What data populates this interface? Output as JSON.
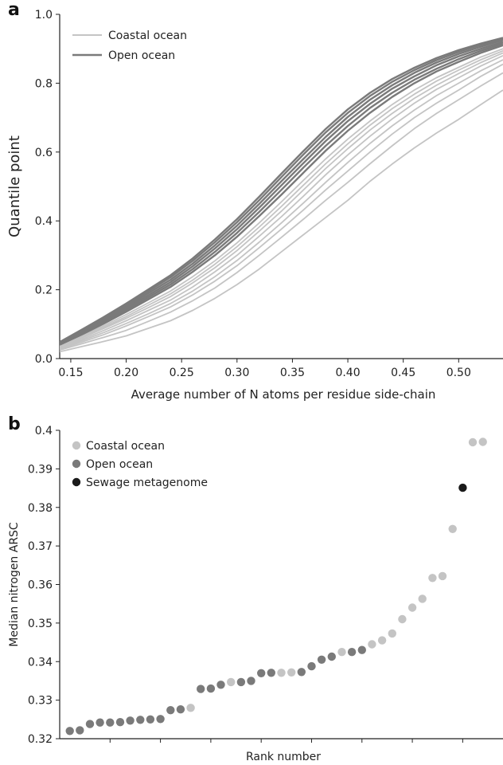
{
  "panels": {
    "a_letter": "a",
    "b_letter": "b"
  },
  "chart_data": [
    {
      "type": "line",
      "xlabel": "Average number of N atoms per residue side-chain",
      "ylabel": "Quantile point",
      "xlim": [
        0.14,
        0.54
      ],
      "ylim": [
        0.0,
        1.0
      ],
      "xticks": [
        "0.15",
        "0.20",
        "0.25",
        "0.30",
        "0.35",
        "0.40",
        "0.45",
        "0.50"
      ],
      "yticks": [
        "0.0",
        "0.2",
        "0.4",
        "0.6",
        "0.8",
        "1.0"
      ],
      "grid": false,
      "legend_position": "top-left",
      "legend": [
        {
          "label": "Coastal ocean",
          "color": "#c4c4c4"
        },
        {
          "label": "Open ocean",
          "color": "#7a7a7a"
        }
      ],
      "x": [
        0.14,
        0.16,
        0.18,
        0.2,
        0.22,
        0.24,
        0.26,
        0.28,
        0.3,
        0.32,
        0.34,
        0.36,
        0.38,
        0.4,
        0.42,
        0.44,
        0.46,
        0.48,
        0.5,
        0.52,
        0.54
      ],
      "series": [
        {
          "group": "Coastal ocean",
          "color": "#c4c4c4",
          "values": [
            0.02,
            0.035,
            0.05,
            0.066,
            0.088,
            0.11,
            0.14,
            0.175,
            0.215,
            0.26,
            0.31,
            0.36,
            0.41,
            0.46,
            0.515,
            0.565,
            0.612,
            0.655,
            0.695,
            0.738,
            0.78
          ]
        },
        {
          "group": "Coastal ocean",
          "color": "#c4c4c4",
          "values": [
            0.025,
            0.043,
            0.062,
            0.082,
            0.108,
            0.135,
            0.168,
            0.205,
            0.25,
            0.3,
            0.352,
            0.405,
            0.46,
            0.512,
            0.566,
            0.618,
            0.668,
            0.712,
            0.752,
            0.792,
            0.83
          ]
        },
        {
          "group": "Coastal ocean",
          "color": "#c4c4c4",
          "values": [
            0.028,
            0.048,
            0.07,
            0.095,
            0.122,
            0.15,
            0.185,
            0.225,
            0.27,
            0.322,
            0.376,
            0.432,
            0.49,
            0.545,
            0.6,
            0.652,
            0.7,
            0.742,
            0.78,
            0.82,
            0.855
          ]
        },
        {
          "group": "Coastal ocean",
          "color": "#c4c4c4",
          "values": [
            0.03,
            0.052,
            0.076,
            0.102,
            0.13,
            0.16,
            0.196,
            0.238,
            0.285,
            0.338,
            0.394,
            0.452,
            0.512,
            0.57,
            0.625,
            0.676,
            0.722,
            0.764,
            0.8,
            0.836,
            0.868
          ]
        },
        {
          "group": "Coastal ocean",
          "color": "#c4c4c4",
          "values": [
            0.032,
            0.056,
            0.082,
            0.11,
            0.14,
            0.17,
            0.208,
            0.252,
            0.3,
            0.355,
            0.412,
            0.472,
            0.534,
            0.592,
            0.646,
            0.696,
            0.742,
            0.782,
            0.816,
            0.85,
            0.88
          ]
        },
        {
          "group": "Coastal ocean",
          "color": "#c4c4c4",
          "values": [
            0.034,
            0.06,
            0.088,
            0.117,
            0.148,
            0.18,
            0.22,
            0.264,
            0.314,
            0.37,
            0.428,
            0.49,
            0.552,
            0.61,
            0.664,
            0.712,
            0.756,
            0.794,
            0.828,
            0.86,
            0.888
          ]
        },
        {
          "group": "Coastal ocean",
          "color": "#c4c4c4",
          "values": [
            0.036,
            0.063,
            0.092,
            0.122,
            0.155,
            0.188,
            0.228,
            0.274,
            0.325,
            0.382,
            0.442,
            0.504,
            0.566,
            0.624,
            0.678,
            0.726,
            0.768,
            0.806,
            0.838,
            0.868,
            0.894
          ]
        },
        {
          "group": "Coastal ocean",
          "color": "#c4c4c4",
          "values": [
            0.038,
            0.066,
            0.096,
            0.128,
            0.162,
            0.196,
            0.238,
            0.284,
            0.336,
            0.394,
            0.455,
            0.518,
            0.58,
            0.638,
            0.69,
            0.738,
            0.78,
            0.816,
            0.846,
            0.876,
            0.9
          ]
        },
        {
          "group": "Open ocean",
          "color": "#7a7a7a",
          "values": [
            0.04,
            0.07,
            0.102,
            0.136,
            0.172,
            0.208,
            0.252,
            0.3,
            0.354,
            0.414,
            0.476,
            0.54,
            0.604,
            0.662,
            0.714,
            0.76,
            0.8,
            0.834,
            0.862,
            0.888,
            0.91
          ]
        },
        {
          "group": "Open ocean",
          "color": "#7a7a7a",
          "values": [
            0.042,
            0.073,
            0.106,
            0.141,
            0.178,
            0.215,
            0.26,
            0.31,
            0.365,
            0.426,
            0.49,
            0.555,
            0.618,
            0.676,
            0.728,
            0.772,
            0.81,
            0.842,
            0.87,
            0.894,
            0.915
          ]
        },
        {
          "group": "Open ocean",
          "color": "#7a7a7a",
          "values": [
            0.044,
            0.076,
            0.11,
            0.146,
            0.184,
            0.222,
            0.268,
            0.32,
            0.376,
            0.438,
            0.503,
            0.568,
            0.632,
            0.69,
            0.74,
            0.784,
            0.82,
            0.852,
            0.878,
            0.9,
            0.92
          ]
        },
        {
          "group": "Open ocean",
          "color": "#7a7a7a",
          "values": [
            0.046,
            0.079,
            0.114,
            0.151,
            0.19,
            0.229,
            0.276,
            0.329,
            0.386,
            0.449,
            0.515,
            0.58,
            0.644,
            0.702,
            0.752,
            0.794,
            0.83,
            0.86,
            0.885,
            0.906,
            0.925
          ]
        },
        {
          "group": "Open ocean",
          "color": "#7a7a7a",
          "values": [
            0.047,
            0.082,
            0.118,
            0.156,
            0.196,
            0.236,
            0.284,
            0.338,
            0.396,
            0.46,
            0.527,
            0.593,
            0.657,
            0.714,
            0.763,
            0.804,
            0.838,
            0.867,
            0.891,
            0.911,
            0.929
          ]
        },
        {
          "group": "Open ocean",
          "color": "#7a7a7a",
          "values": [
            0.048,
            0.084,
            0.121,
            0.16,
            0.201,
            0.242,
            0.291,
            0.346,
            0.405,
            0.47,
            0.537,
            0.603,
            0.667,
            0.724,
            0.772,
            0.812,
            0.845,
            0.873,
            0.896,
            0.915,
            0.932
          ]
        }
      ]
    },
    {
      "type": "scatter",
      "xlabel": "Rank number",
      "ylabel": "Median nitrogen ARSC",
      "xlim": [
        0,
        44
      ],
      "ylim": [
        0.32,
        0.4
      ],
      "yticks": [
        "0.32",
        "0.33",
        "0.34",
        "0.35",
        "0.36",
        "0.37",
        "0.38",
        "0.39",
        "0.4"
      ],
      "xticks_positions": [
        5,
        10,
        15,
        20,
        25,
        30,
        35,
        40
      ],
      "grid": false,
      "legend_position": "top-left",
      "legend": [
        {
          "label": "Coastal ocean",
          "color": "#c4c4c4"
        },
        {
          "label": "Open ocean",
          "color": "#7a7a7a"
        },
        {
          "label": "Sewage metagenome",
          "color": "#1a1a1a"
        }
      ],
      "points": [
        {
          "x": 1,
          "y": 0.322,
          "group": "Open ocean"
        },
        {
          "x": 2,
          "y": 0.3222,
          "group": "Open ocean"
        },
        {
          "x": 3,
          "y": 0.3238,
          "group": "Open ocean"
        },
        {
          "x": 4,
          "y": 0.3242,
          "group": "Open ocean"
        },
        {
          "x": 5,
          "y": 0.3242,
          "group": "Open ocean"
        },
        {
          "x": 6,
          "y": 0.3243,
          "group": "Open ocean"
        },
        {
          "x": 7,
          "y": 0.3247,
          "group": "Open ocean"
        },
        {
          "x": 8,
          "y": 0.3249,
          "group": "Open ocean"
        },
        {
          "x": 9,
          "y": 0.325,
          "group": "Open ocean"
        },
        {
          "x": 10,
          "y": 0.3251,
          "group": "Open ocean"
        },
        {
          "x": 11,
          "y": 0.3274,
          "group": "Open ocean"
        },
        {
          "x": 12,
          "y": 0.3276,
          "group": "Open ocean"
        },
        {
          "x": 13,
          "y": 0.328,
          "group": "Coastal ocean"
        },
        {
          "x": 14,
          "y": 0.3329,
          "group": "Open ocean"
        },
        {
          "x": 15,
          "y": 0.333,
          "group": "Open ocean"
        },
        {
          "x": 16,
          "y": 0.334,
          "group": "Open ocean"
        },
        {
          "x": 17,
          "y": 0.3347,
          "group": "Coastal ocean"
        },
        {
          "x": 18,
          "y": 0.3347,
          "group": "Open ocean"
        },
        {
          "x": 19,
          "y": 0.335,
          "group": "Open ocean"
        },
        {
          "x": 20,
          "y": 0.337,
          "group": "Open ocean"
        },
        {
          "x": 21,
          "y": 0.3371,
          "group": "Open ocean"
        },
        {
          "x": 22,
          "y": 0.3371,
          "group": "Coastal ocean"
        },
        {
          "x": 23,
          "y": 0.3372,
          "group": "Coastal ocean"
        },
        {
          "x": 24,
          "y": 0.3373,
          "group": "Open ocean"
        },
        {
          "x": 25,
          "y": 0.3388,
          "group": "Open ocean"
        },
        {
          "x": 26,
          "y": 0.3405,
          "group": "Open ocean"
        },
        {
          "x": 27,
          "y": 0.3413,
          "group": "Open ocean"
        },
        {
          "x": 28,
          "y": 0.3425,
          "group": "Coastal ocean"
        },
        {
          "x": 29,
          "y": 0.3425,
          "group": "Open ocean"
        },
        {
          "x": 30,
          "y": 0.343,
          "group": "Open ocean"
        },
        {
          "x": 31,
          "y": 0.3445,
          "group": "Coastal ocean"
        },
        {
          "x": 32,
          "y": 0.3455,
          "group": "Coastal ocean"
        },
        {
          "x": 33,
          "y": 0.3473,
          "group": "Coastal ocean"
        },
        {
          "x": 34,
          "y": 0.351,
          "group": "Coastal ocean"
        },
        {
          "x": 35,
          "y": 0.354,
          "group": "Coastal ocean"
        },
        {
          "x": 36,
          "y": 0.3563,
          "group": "Coastal ocean"
        },
        {
          "x": 37,
          "y": 0.3617,
          "group": "Coastal ocean"
        },
        {
          "x": 38,
          "y": 0.3622,
          "group": "Coastal ocean"
        },
        {
          "x": 39,
          "y": 0.3744,
          "group": "Coastal ocean"
        },
        {
          "x": 40,
          "y": 0.3851,
          "group": "Sewage metagenome"
        },
        {
          "x": 41,
          "y": 0.3969,
          "group": "Coastal ocean"
        },
        {
          "x": 42,
          "y": 0.397,
          "group": "Coastal ocean"
        }
      ]
    }
  ]
}
